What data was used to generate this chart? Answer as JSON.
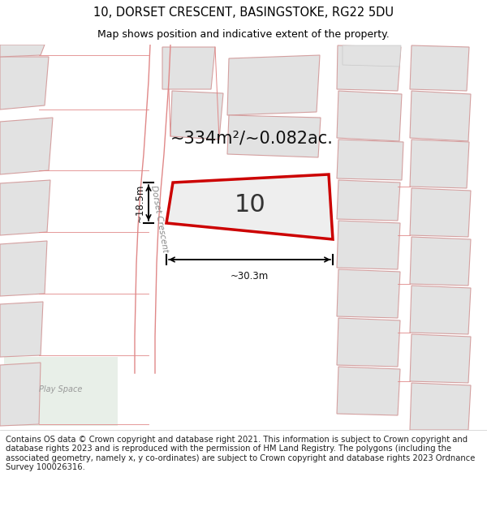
{
  "title_line1": "10, DORSET CRESCENT, BASINGSTOKE, RG22 5DU",
  "title_line2": "Map shows position and indicative extent of the property.",
  "area_text": "~334m²/~0.082ac.",
  "property_number": "10",
  "dim_width": "~30.3m",
  "dim_height": "~18.5m",
  "street_label": "Dorset Crescent",
  "play_space_label": "Play Space",
  "footer_text": "Contains OS data © Crown copyright and database right 2021. This information is subject to Crown copyright and database rights 2023 and is reproduced with the permission of HM Land Registry. The polygons (including the associated geometry, namely x, y co-ordinates) are subject to Crown copyright and database rights 2023 Ordnance Survey 100026316.",
  "bg_color": "#ffffff",
  "building_fill": "#e2e2e2",
  "building_edge": "#d4a0a0",
  "road_edge": "#e08888",
  "highlight_fill": "#eeeeee",
  "highlight_edge": "#cc0000",
  "title_fontsize": 10.5,
  "subtitle_fontsize": 9,
  "area_fontsize": 15,
  "number_fontsize": 22,
  "footer_fontsize": 7.2,
  "dim_fontsize": 8.5,
  "street_fontsize": 7.5,
  "playspace_fontsize": 7
}
